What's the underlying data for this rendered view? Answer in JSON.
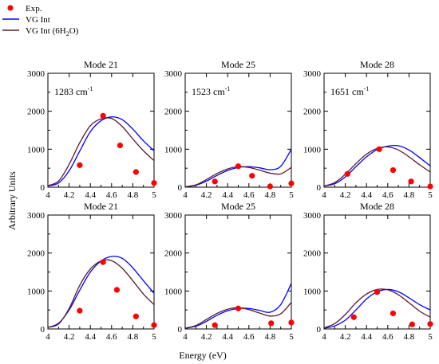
{
  "legend": {
    "items": [
      {
        "label": "Exp.",
        "kind": "marker",
        "color": "#ff0000"
      },
      {
        "label": "VG Int",
        "kind": "line",
        "color": "#0000ff"
      },
      {
        "label": "VG Int (6H",
        "sub": "2",
        "tail": "O)",
        "kind": "line",
        "color": "#5c1a30"
      }
    ]
  },
  "axes_text": {
    "ylabel": "Arbitrary Units",
    "xlabel": "Energy (eV)"
  },
  "chart_data": [
    {
      "type": "line",
      "title": "Mode 21",
      "annotation": "1283 cm",
      "annotation_sup": "-1",
      "xlim": [
        4,
        5
      ],
      "ylim": [
        0,
        3000
      ],
      "xticks": [
        "4",
        "4.2",
        "4.4",
        "4.6",
        "4.8",
        "5"
      ],
      "yticks": [
        "0",
        "1000",
        "2000",
        "3000"
      ],
      "exp": [
        [
          4.3,
          580
        ],
        [
          4.52,
          1880
        ],
        [
          4.68,
          1100
        ],
        [
          4.83,
          400
        ],
        [
          5.0,
          110
        ]
      ],
      "series": [
        {
          "name": "VG Int",
          "color": "#0000ff",
          "values": [
            [
              4.0,
              30
            ],
            [
              4.1,
              110
            ],
            [
              4.2,
              430
            ],
            [
              4.3,
              950
            ],
            [
              4.4,
              1460
            ],
            [
              4.5,
              1750
            ],
            [
              4.6,
              1850
            ],
            [
              4.7,
              1780
            ],
            [
              4.8,
              1530
            ],
            [
              4.9,
              1220
            ],
            [
              5.0,
              960
            ]
          ]
        },
        {
          "name": "VG Int (6H2O)",
          "color": "#5c1a30",
          "values": [
            [
              4.0,
              40
            ],
            [
              4.1,
              160
            ],
            [
              4.2,
              600
            ],
            [
              4.3,
              1170
            ],
            [
              4.4,
              1620
            ],
            [
              4.5,
              1800
            ],
            [
              4.6,
              1810
            ],
            [
              4.7,
              1600
            ],
            [
              4.8,
              1270
            ],
            [
              4.9,
              960
            ],
            [
              5.0,
              700
            ]
          ]
        }
      ]
    },
    {
      "type": "line",
      "title": "Mode 25",
      "annotation": "1523 cm",
      "annotation_sup": "-1",
      "xlim": [
        4,
        5
      ],
      "ylim": [
        0,
        3000
      ],
      "xticks": [
        "4",
        "4.2",
        "4.4",
        "4.6",
        "4.8",
        "5"
      ],
      "yticks": [
        "0",
        "1000",
        "2000",
        "3000"
      ],
      "exp": [
        [
          4.28,
          150
        ],
        [
          4.5,
          550
        ],
        [
          4.63,
          300
        ],
        [
          4.8,
          20
        ],
        [
          5.0,
          100
        ]
      ],
      "series": [
        {
          "name": "VG Int",
          "color": "#0000ff",
          "values": [
            [
              4.0,
              10
            ],
            [
              4.1,
              50
            ],
            [
              4.2,
              160
            ],
            [
              4.3,
              310
            ],
            [
              4.4,
              440
            ],
            [
              4.5,
              520
            ],
            [
              4.6,
              540
            ],
            [
              4.7,
              510
            ],
            [
              4.8,
              460
            ],
            [
              4.9,
              550
            ],
            [
              5.0,
              1000
            ]
          ]
        },
        {
          "name": "VG Int (6H2O)",
          "color": "#5c1a30",
          "values": [
            [
              4.0,
              10
            ],
            [
              4.1,
              60
            ],
            [
              4.2,
              200
            ],
            [
              4.3,
              360
            ],
            [
              4.4,
              480
            ],
            [
              4.5,
              540
            ],
            [
              4.6,
              520
            ],
            [
              4.7,
              450
            ],
            [
              4.8,
              370
            ],
            [
              4.9,
              350
            ],
            [
              5.0,
              520
            ]
          ]
        }
      ]
    },
    {
      "type": "line",
      "title": "Mode 28",
      "annotation": "1651 cm",
      "annotation_sup": "-1",
      "xlim": [
        4,
        5
      ],
      "ylim": [
        0,
        3000
      ],
      "xticks": [
        "4",
        "4.2",
        "4.4",
        "4.6",
        "4.8",
        "5"
      ],
      "yticks": [
        "0",
        "1000",
        "2000",
        "3000"
      ],
      "exp": [
        [
          4.22,
          350
        ],
        [
          4.52,
          1000
        ],
        [
          4.65,
          450
        ],
        [
          4.82,
          150
        ],
        [
          5.0,
          20
        ]
      ],
      "series": [
        {
          "name": "VG Int",
          "color": "#0000ff",
          "values": [
            [
              4.0,
              30
            ],
            [
              4.1,
              90
            ],
            [
              4.2,
              270
            ],
            [
              4.3,
              540
            ],
            [
              4.4,
              800
            ],
            [
              4.5,
              990
            ],
            [
              4.6,
              1080
            ],
            [
              4.7,
              1090
            ],
            [
              4.8,
              980
            ],
            [
              4.9,
              780
            ],
            [
              5.0,
              560
            ]
          ]
        },
        {
          "name": "VG Int (6H2O)",
          "color": "#5c1a30",
          "values": [
            [
              4.0,
              30
            ],
            [
              4.1,
              120
            ],
            [
              4.2,
              340
            ],
            [
              4.3,
              620
            ],
            [
              4.4,
              870
            ],
            [
              4.5,
              1020
            ],
            [
              4.6,
              1060
            ],
            [
              4.7,
              980
            ],
            [
              4.8,
              800
            ],
            [
              4.9,
              590
            ],
            [
              5.0,
              400
            ]
          ]
        }
      ]
    },
    {
      "type": "line",
      "title": "Mode 21",
      "annotation": "",
      "annotation_sup": "",
      "xlim": [
        4,
        5
      ],
      "ylim": [
        0,
        3000
      ],
      "xticks": [
        "4",
        "4.2",
        "4.4",
        "4.6",
        "4.8",
        "5"
      ],
      "yticks": [
        "0",
        "1000",
        "2000",
        "3000"
      ],
      "exp": [
        [
          4.3,
          480
        ],
        [
          4.52,
          1760
        ],
        [
          4.65,
          1030
        ],
        [
          4.83,
          330
        ],
        [
          5.0,
          100
        ]
      ],
      "series": [
        {
          "name": "VG Int",
          "color": "#0000ff",
          "values": [
            [
              4.0,
              40
            ],
            [
              4.1,
              150
            ],
            [
              4.2,
              500
            ],
            [
              4.3,
              1020
            ],
            [
              4.4,
              1500
            ],
            [
              4.5,
              1790
            ],
            [
              4.6,
              1910
            ],
            [
              4.7,
              1860
            ],
            [
              4.8,
              1610
            ],
            [
              4.9,
              1270
            ],
            [
              5.0,
              940
            ]
          ]
        },
        {
          "name": "VG Int (6H2O)",
          "color": "#5c1a30",
          "values": [
            [
              4.0,
              40
            ],
            [
              4.1,
              130
            ],
            [
              4.2,
              540
            ],
            [
              4.3,
              1150
            ],
            [
              4.4,
              1580
            ],
            [
              4.5,
              1790
            ],
            [
              4.6,
              1800
            ],
            [
              4.7,
              1600
            ],
            [
              4.8,
              1270
            ],
            [
              4.9,
              920
            ],
            [
              5.0,
              640
            ]
          ]
        }
      ]
    },
    {
      "type": "line",
      "title": "Mode 25",
      "annotation": "",
      "annotation_sup": "",
      "xlim": [
        4,
        5
      ],
      "ylim": [
        0,
        3000
      ],
      "xticks": [
        "4",
        "4.2",
        "4.4",
        "4.6",
        "4.8",
        "5"
      ],
      "yticks": [
        "0",
        "1000",
        "2000",
        "3000"
      ],
      "exp": [
        [
          4.28,
          100
        ],
        [
          4.5,
          540
        ],
        [
          4.81,
          150
        ],
        [
          5.0,
          170
        ]
      ],
      "series": [
        {
          "name": "VG Int",
          "color": "#0000ff",
          "values": [
            [
              4.0,
              20
            ],
            [
              4.1,
              70
            ],
            [
              4.2,
              200
            ],
            [
              4.3,
              360
            ],
            [
              4.4,
              480
            ],
            [
              4.5,
              540
            ],
            [
              4.6,
              540
            ],
            [
              4.7,
              490
            ],
            [
              4.8,
              440
            ],
            [
              4.9,
              640
            ],
            [
              5.0,
              1200
            ]
          ]
        },
        {
          "name": "VG Int (6H2O)",
          "color": "#5c1a30",
          "values": [
            [
              4.0,
              20
            ],
            [
              4.1,
              90
            ],
            [
              4.2,
              250
            ],
            [
              4.3,
              410
            ],
            [
              4.4,
              520
            ],
            [
              4.5,
              560
            ],
            [
              4.6,
              510
            ],
            [
              4.7,
              420
            ],
            [
              4.8,
              340
            ],
            [
              4.9,
              400
            ],
            [
              5.0,
              700
            ]
          ]
        }
      ]
    },
    {
      "type": "line",
      "title": "Mode 28",
      "annotation": "",
      "annotation_sup": "",
      "xlim": [
        4,
        5
      ],
      "ylim": [
        0,
        3000
      ],
      "xticks": [
        "4",
        "4.2",
        "4.4",
        "4.6",
        "4.8",
        "5"
      ],
      "yticks": [
        "0",
        "1000",
        "2000",
        "3000"
      ],
      "exp": [
        [
          4.28,
          310
        ],
        [
          4.5,
          970
        ],
        [
          4.65,
          410
        ],
        [
          4.83,
          120
        ],
        [
          5.0,
          130
        ]
      ],
      "series": [
        {
          "name": "VG Int",
          "color": "#0000ff",
          "values": [
            [
              4.0,
              20
            ],
            [
              4.1,
              80
            ],
            [
              4.2,
              230
            ],
            [
              4.3,
              500
            ],
            [
              4.4,
              790
            ],
            [
              4.5,
              980
            ],
            [
              4.6,
              1040
            ],
            [
              4.7,
              980
            ],
            [
              4.8,
              820
            ],
            [
              4.9,
              640
            ],
            [
              5.0,
              500
            ]
          ]
        },
        {
          "name": "VG Int (6H2O)",
          "color": "#5c1a30",
          "values": [
            [
              4.0,
              30
            ],
            [
              4.1,
              140
            ],
            [
              4.2,
              380
            ],
            [
              4.3,
              690
            ],
            [
              4.4,
              920
            ],
            [
              4.5,
              1040
            ],
            [
              4.6,
              1030
            ],
            [
              4.7,
              900
            ],
            [
              4.8,
              690
            ],
            [
              4.9,
              470
            ],
            [
              5.0,
              310
            ]
          ]
        }
      ]
    }
  ]
}
